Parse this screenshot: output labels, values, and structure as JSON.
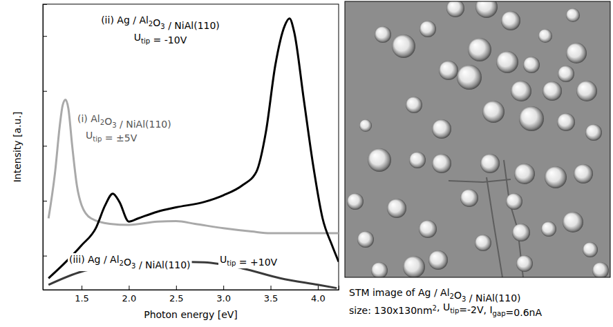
{
  "chart_data": {
    "type": "line",
    "x_label": "Photon energy [eV]",
    "y_label": "Intensity [a.u.]",
    "xlim": [
      1.09,
      4.22
    ],
    "xticks": [
      {
        "value": 1.5,
        "label": "1.5"
      },
      {
        "value": 2,
        "label": "2.0"
      },
      {
        "value": 2.5,
        "label": "2.5"
      },
      {
        "value": 3,
        "label": "3.0"
      },
      {
        "value": 3.5,
        "label": "3.5"
      },
      {
        "value": 4,
        "label": "4.0"
      }
    ],
    "ylim": [
      0.38,
      5.58
    ],
    "yticks": [
      1,
      2,
      3,
      4,
      5
    ],
    "tick_labels": "x",
    "grid": false,
    "series": [
      {
        "name": [
          "(i) Al",
          {
            "sub": "2"
          },
          "O",
          {
            "sub": "3"
          },
          " / NiAl(110)"
        ],
        "annotation": [
          "U",
          {
            "sub": "tip"
          },
          " = ±5V"
        ],
        "color": "#a9a9a9",
        "marker": "none",
        "line_style": "solid",
        "x": [
          1.15,
          1.22,
          1.27,
          1.3,
          1.33,
          1.36,
          1.4,
          1.45,
          1.5,
          1.6,
          1.8,
          2.0,
          2.3,
          2.5,
          2.7,
          3.0,
          3.3,
          3.5,
          4.0,
          4.22
        ],
        "values": [
          1.68,
          2.53,
          3.38,
          3.74,
          3.84,
          3.68,
          3.01,
          2.28,
          1.92,
          1.68,
          1.58,
          1.56,
          1.62,
          1.63,
          1.58,
          1.5,
          1.44,
          1.41,
          1.41,
          1.41
        ]
      },
      {
        "name": [
          "(ii) Ag / Al",
          {
            "sub": "2"
          },
          "O",
          {
            "sub": "3"
          },
          " / NiAl(110)"
        ],
        "annotation": [
          "U",
          {
            "sub": "tip"
          },
          " = -10V"
        ],
        "color": "#000000",
        "marker": "none",
        "line_style": "solid",
        "x": [
          1.15,
          1.3,
          1.5,
          1.65,
          1.75,
          1.83,
          1.9,
          2.0,
          2.1,
          2.3,
          2.5,
          2.8,
          3.0,
          3.2,
          3.35,
          3.45,
          3.55,
          3.65,
          3.7,
          3.75,
          3.85,
          3.95,
          4.05,
          4.15,
          4.22
        ],
        "values": [
          0.59,
          0.83,
          1.19,
          1.5,
          1.92,
          2.13,
          1.98,
          1.62,
          1.68,
          1.8,
          1.88,
          1.98,
          2.1,
          2.28,
          2.53,
          3.25,
          4.47,
          5.19,
          5.32,
          5.07,
          3.86,
          2.65,
          1.68,
          1.19,
          0.89
        ]
      },
      {
        "name": [
          "(iii) Ag / Al",
          {
            "sub": "2"
          },
          "O",
          {
            "sub": "3"
          },
          " / NiAl(110)"
        ],
        "annotation": [
          "U",
          {
            "sub": "tip"
          },
          " = +10V"
        ],
        "color": "#3a3a3a",
        "marker": "none",
        "line_style": "solid",
        "x": [
          1.15,
          1.5,
          2.0,
          2.5,
          2.8,
          3.2,
          3.6,
          4.0,
          4.2
        ],
        "values": [
          0.47,
          0.71,
          0.83,
          0.89,
          0.88,
          0.77,
          0.59,
          0.47,
          0.41
        ]
      }
    ]
  },
  "image_panel": {
    "caption": [
      [
        "STM image of Ag / Al",
        {
          "sub": "2"
        },
        "O",
        {
          "sub": "3"
        },
        " / NiAl(110)"
      ],
      [
        "size: 130x130nm",
        {
          "sup": "2"
        },
        ", U",
        {
          "sub": "tip"
        },
        "=-2V, I",
        {
          "sub": "gap"
        },
        "=0.6nA"
      ]
    ]
  }
}
